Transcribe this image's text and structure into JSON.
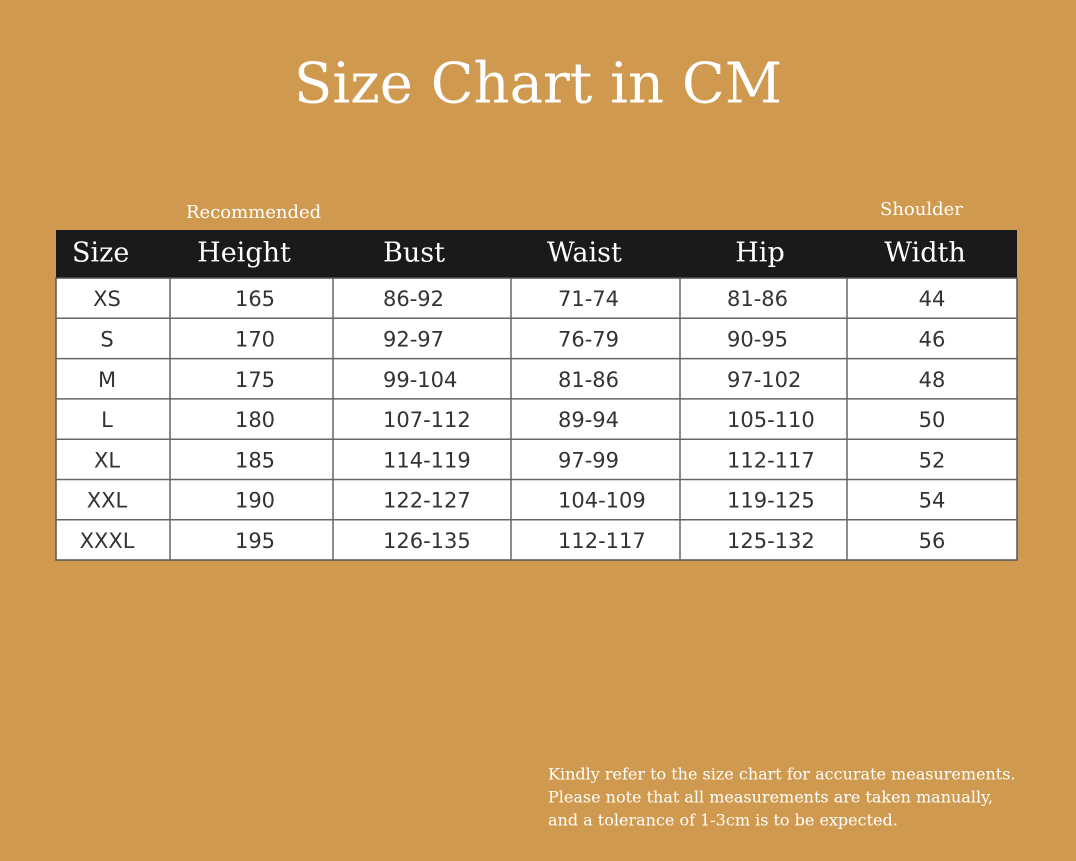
{
  "title": "Size Chart in CM",
  "notes": {
    "recommended": "Recommended",
    "shoulder": "Shoulder"
  },
  "table": {
    "header": [
      "Size",
      "Height",
      "Bust",
      "Waist",
      "Hip",
      "Width"
    ],
    "rows": [
      [
        "XS",
        "165",
        "86-92",
        "71-74",
        "81-86",
        "44"
      ],
      [
        "S",
        "170",
        "92-97",
        "76-79",
        "90-95",
        "46"
      ],
      [
        "M",
        "175",
        "99-104",
        "81-86",
        "97-102",
        "48"
      ],
      [
        "L",
        "180",
        "107-112",
        "89-94",
        "105-110",
        "50"
      ],
      [
        "XL",
        "185",
        "114-119",
        "97-99",
        "112-117",
        "52"
      ],
      [
        "XXL",
        "190",
        "122-127",
        "104-109",
        "119-125",
        "54"
      ],
      [
        "XXXL",
        "195",
        "126-135",
        "112-117",
        "125-132",
        "56"
      ]
    ]
  },
  "footnote": [
    "Kindly refer to the size chart for accurate measurements.",
    "Please note that all measurements are taken manually,",
    "and a tolerance of 1-3cm is to be expected."
  ]
}
